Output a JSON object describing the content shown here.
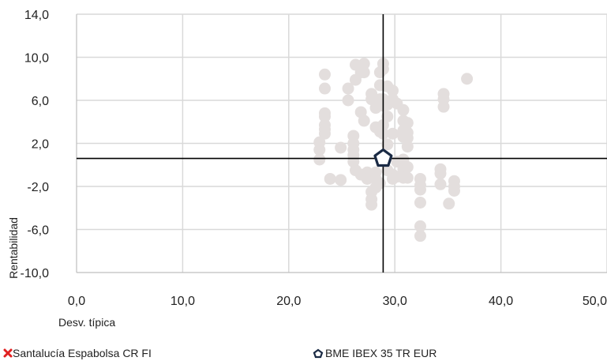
{
  "chart_data": {
    "type": "scatter",
    "xlabel": "Desv. típica",
    "ylabel": "Rentabilidad",
    "xlim": [
      0,
      50
    ],
    "ylim": [
      -10,
      14
    ],
    "x_ticks": [
      "0,0",
      "10,0",
      "20,0",
      "30,0",
      "40,0",
      "50,0"
    ],
    "x_tick_values": [
      0,
      10,
      20,
      30,
      40,
      50
    ],
    "y_ticks": [
      "14,0",
      "10,0",
      "6,0",
      "2,0",
      "-2,0",
      "-6,0",
      "-10,0"
    ],
    "y_tick_values": [
      14,
      10,
      6,
      2,
      -2,
      -6,
      -10
    ],
    "grid": true,
    "crosshair": {
      "x": 28.9,
      "y": 0.6
    },
    "legend_position": "bottom",
    "colors": {
      "peers": "#e3dedd",
      "benchmark": "#1a2a44",
      "fund": "#e02020",
      "crosshair": "#000000",
      "grid": "#d9d9d9"
    },
    "series": [
      {
        "name": "",
        "marker": "circle",
        "points": [
          [
            23.4,
            8.4
          ],
          [
            23.4,
            7.1
          ],
          [
            23.4,
            4.8
          ],
          [
            23.4,
            4.5
          ],
          [
            23.4,
            3.7
          ],
          [
            23.4,
            3.3
          ],
          [
            23.4,
            2.9
          ],
          [
            22.9,
            2.1
          ],
          [
            22.9,
            1.4
          ],
          [
            22.9,
            0.5
          ],
          [
            23.9,
            -1.3
          ],
          [
            24.9,
            -1.4
          ],
          [
            24.9,
            1.6
          ],
          [
            25.6,
            7.1
          ],
          [
            25.6,
            6.0
          ],
          [
            26.1,
            2.7
          ],
          [
            26.1,
            2.0
          ],
          [
            26.1,
            1.4
          ],
          [
            26.1,
            0.9
          ],
          [
            26.1,
            0.3
          ],
          [
            26.3,
            9.3
          ],
          [
            26.3,
            7.9
          ],
          [
            26.3,
            -0.5
          ],
          [
            26.8,
            9.2
          ],
          [
            26.8,
            8.6
          ],
          [
            26.8,
            4.9
          ],
          [
            26.8,
            -0.9
          ],
          [
            27.1,
            9.4
          ],
          [
            27.1,
            8.6
          ],
          [
            27.1,
            4.1
          ],
          [
            27.4,
            -0.7
          ],
          [
            27.4,
            -1.3
          ],
          [
            27.8,
            6.6
          ],
          [
            27.8,
            6.1
          ],
          [
            27.8,
            -1.1
          ],
          [
            27.8,
            -2.5
          ],
          [
            27.8,
            -3.2
          ],
          [
            27.8,
            -3.7
          ],
          [
            28.2,
            5.3
          ],
          [
            28.2,
            3.5
          ],
          [
            28.2,
            -0.7
          ],
          [
            28.2,
            -1.3
          ],
          [
            28.2,
            -2.1
          ],
          [
            28.6,
            8.6
          ],
          [
            28.6,
            7.4
          ],
          [
            28.6,
            6.1
          ],
          [
            28.6,
            3.1
          ],
          [
            28.6,
            -1.7
          ],
          [
            28.9,
            9.4
          ],
          [
            28.9,
            8.9
          ],
          [
            28.9,
            6.1
          ],
          [
            28.9,
            5.5
          ],
          [
            28.9,
            3.7
          ],
          [
            28.9,
            2.9
          ],
          [
            29.3,
            7.3
          ],
          [
            29.3,
            5.6
          ],
          [
            29.3,
            4.5
          ],
          [
            29.3,
            1.9
          ],
          [
            29.3,
            -0.5
          ],
          [
            29.8,
            6.9
          ],
          [
            29.8,
            6.1
          ],
          [
            29.8,
            2.9
          ],
          [
            29.8,
            -0.9
          ],
          [
            29.8,
            -1.3
          ],
          [
            30.2,
            5.7
          ],
          [
            30.2,
            0.3
          ],
          [
            30.2,
            -1.1
          ],
          [
            30.8,
            5.1
          ],
          [
            30.8,
            4.1
          ],
          [
            30.8,
            3.2
          ],
          [
            30.8,
            2.6
          ],
          [
            30.8,
            0.5
          ],
          [
            30.8,
            -0.4
          ],
          [
            30.8,
            -1.2
          ],
          [
            31.2,
            3.9
          ],
          [
            31.2,
            3.0
          ],
          [
            31.2,
            2.5
          ],
          [
            31.2,
            1.7
          ],
          [
            31.2,
            -0.2
          ],
          [
            31.2,
            -1.2
          ],
          [
            32.4,
            -1.3
          ],
          [
            32.4,
            -1.9
          ],
          [
            32.4,
            -2.3
          ],
          [
            32.4,
            -3.5
          ],
          [
            32.4,
            -5.7
          ],
          [
            32.4,
            -6.6
          ],
          [
            34.3,
            -0.4
          ],
          [
            34.3,
            -0.8
          ],
          [
            34.3,
            -1.8
          ],
          [
            34.6,
            6.6
          ],
          [
            34.6,
            6.1
          ],
          [
            34.6,
            5.4
          ],
          [
            35.1,
            -3.6
          ],
          [
            35.6,
            -1.5
          ],
          [
            35.6,
            -2.0
          ],
          [
            35.6,
            -2.4
          ],
          [
            36.8,
            8.0
          ]
        ]
      },
      {
        "name": "BME IBEX 35 TR EUR",
        "marker": "pentagon",
        "points": [
          [
            28.9,
            0.6
          ]
        ]
      }
    ],
    "legend": [
      {
        "label": "Santalucía Espabolsa CR FI",
        "marker": "x",
        "color": "#e02020"
      },
      {
        "label": "BME IBEX 35 TR EUR",
        "marker": "pentagon",
        "color": "#1a2a44"
      }
    ]
  }
}
